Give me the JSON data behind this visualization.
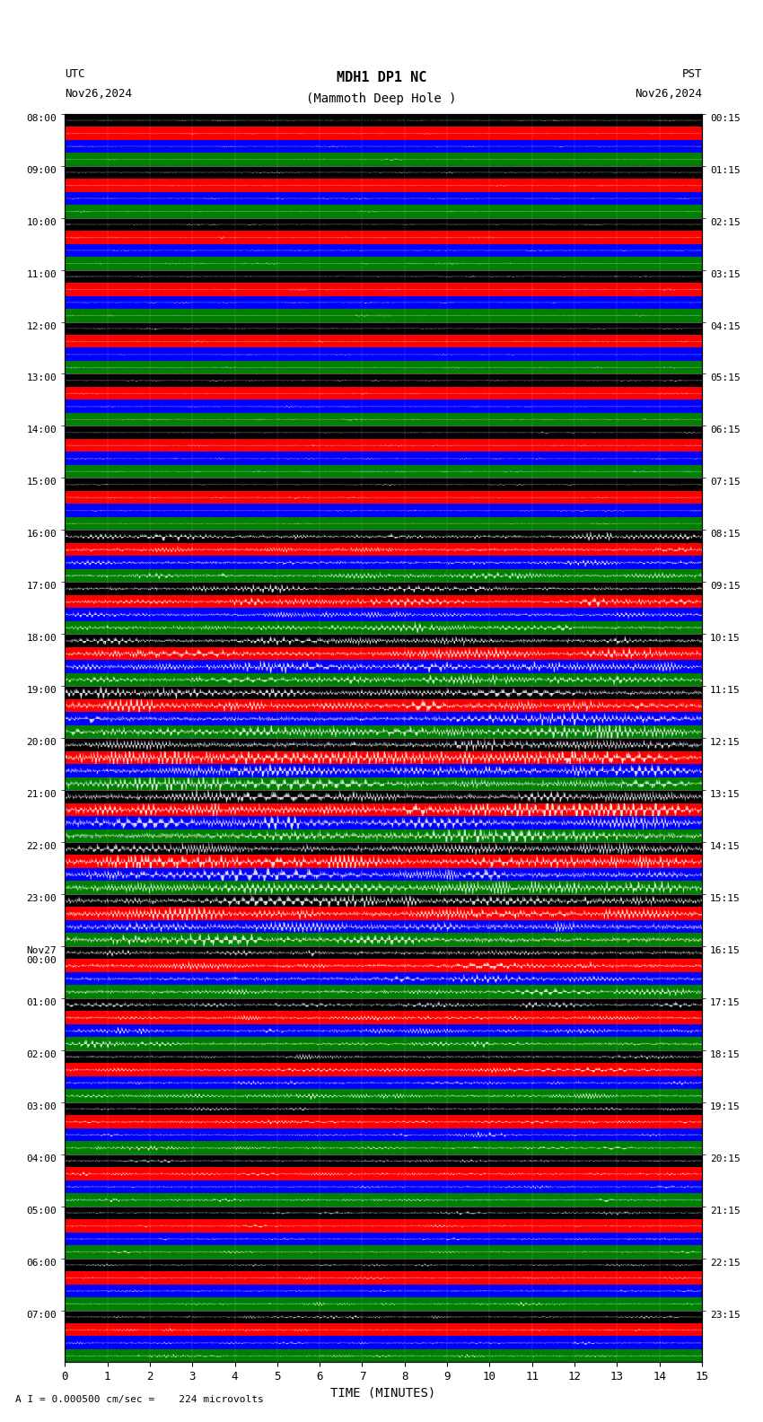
{
  "title_line1": "MDH1 DP1 NC",
  "title_line2": "(Mammoth Deep Hole )",
  "scale_label": "I = 0.000500 cm/sec",
  "utc_label": "UTC",
  "utc_date": "Nov26,2024",
  "pst_label": "PST",
  "pst_date": "Nov26,2024",
  "bottom_label": "A I = 0.000500 cm/sec =    224 microvolts",
  "xlabel": "TIME (MINUTES)",
  "left_times": [
    "08:00",
    "09:00",
    "10:00",
    "11:00",
    "12:00",
    "13:00",
    "14:00",
    "15:00",
    "16:00",
    "17:00",
    "18:00",
    "19:00",
    "20:00",
    "21:00",
    "22:00",
    "23:00",
    "Nov27\n00:00",
    "01:00",
    "02:00",
    "03:00",
    "04:00",
    "05:00",
    "06:00",
    "07:00"
  ],
  "right_times": [
    "00:15",
    "01:15",
    "02:15",
    "03:15",
    "04:15",
    "05:15",
    "06:15",
    "07:15",
    "08:15",
    "09:15",
    "10:15",
    "11:15",
    "12:15",
    "13:15",
    "14:15",
    "15:15",
    "16:15",
    "17:15",
    "18:15",
    "19:15",
    "20:15",
    "21:15",
    "22:15",
    "23:15"
  ],
  "n_rows": 24,
  "n_samples": 1800,
  "bg_color": "#ffffff",
  "band_colors": [
    "#000000",
    "#ff0000",
    "#0000ff",
    "#008000"
  ],
  "seed": 42,
  "activity_levels": [
    0.08,
    0.08,
    0.08,
    0.08,
    0.08,
    0.08,
    0.08,
    0.08,
    0.35,
    0.35,
    0.45,
    0.55,
    0.65,
    0.7,
    0.65,
    0.6,
    0.4,
    0.3,
    0.25,
    0.2,
    0.18,
    0.15,
    0.15,
    0.15
  ]
}
